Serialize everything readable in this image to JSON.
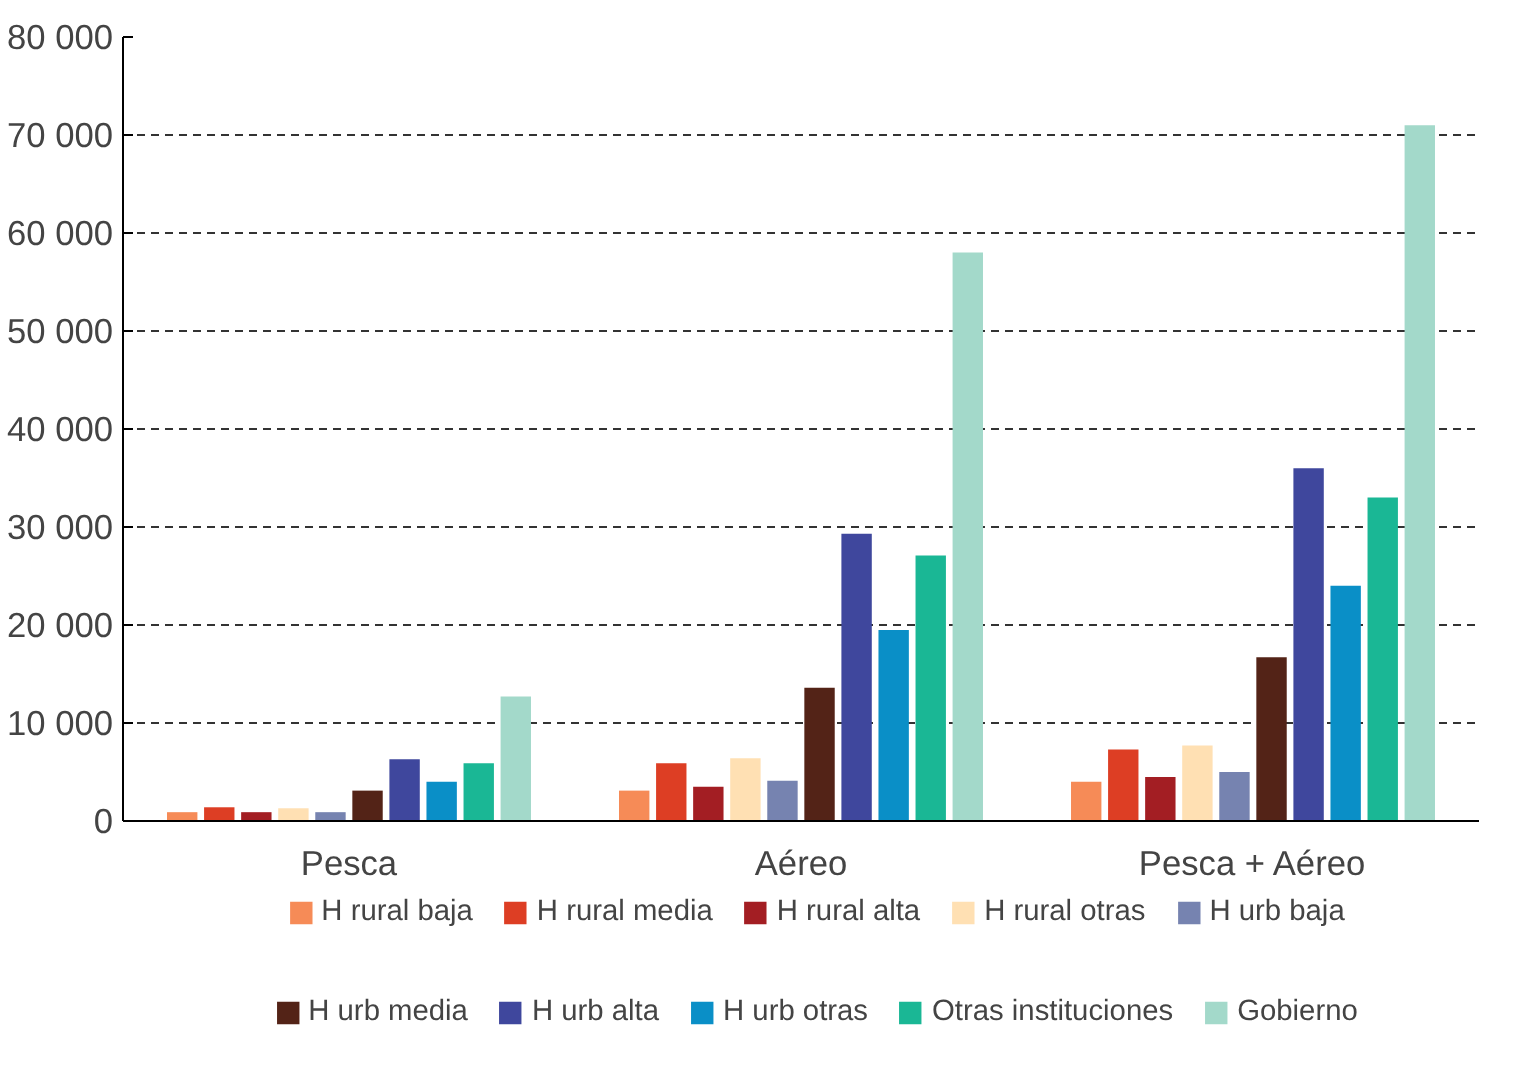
{
  "chart_data": {
    "type": "bar",
    "categories": [
      "Pesca",
      "Aéreo",
      "Pesca + Aéreo"
    ],
    "series": [
      {
        "name": "H rural baja",
        "color": "#f68b57",
        "values": [
          900,
          3100,
          4000
        ]
      },
      {
        "name": "H rural media",
        "color": "#dd3e24",
        "values": [
          1400,
          5900,
          7300
        ]
      },
      {
        "name": "H rural alta",
        "color": "#a31e23",
        "values": [
          900,
          3500,
          4500
        ]
      },
      {
        "name": "H rural otras",
        "color": "#ffe0b3",
        "values": [
          1300,
          6400,
          7700
        ]
      },
      {
        "name": "H urb baja",
        "color": "#7683b0",
        "values": [
          900,
          4100,
          5000
        ]
      },
      {
        "name": "H urb media",
        "color": "#532317",
        "values": [
          3100,
          13600,
          16700
        ]
      },
      {
        "name": "H urb alta",
        "color": "#3f479d",
        "values": [
          6300,
          29300,
          36000
        ]
      },
      {
        "name": "H urb otras",
        "color": "#0a8fc7",
        "values": [
          4000,
          19500,
          24000
        ]
      },
      {
        "name": "Otras instituciones",
        "color": "#1ab795",
        "values": [
          5900,
          27100,
          33000
        ]
      },
      {
        "name": "Gobierno",
        "color": "#a3d9ca",
        "values": [
          12700,
          58000,
          71000
        ]
      }
    ],
    "ylim": [
      0,
      80000
    ],
    "yticks": [
      0,
      {
        "value": 10000,
        "label": "10 000"
      },
      {
        "value": 20000,
        "label": "20 000"
      },
      {
        "value": 30000,
        "label": "30 000"
      },
      {
        "value": 40000,
        "label": "40 000"
      },
      {
        "value": 50000,
        "label": "50 000"
      },
      {
        "value": 60000,
        "label": "60 000"
      },
      {
        "value": 70000,
        "label": "70 000"
      },
      {
        "value": 80000,
        "label": "80 000"
      }
    ],
    "grid": "y",
    "legend": "bottom"
  }
}
